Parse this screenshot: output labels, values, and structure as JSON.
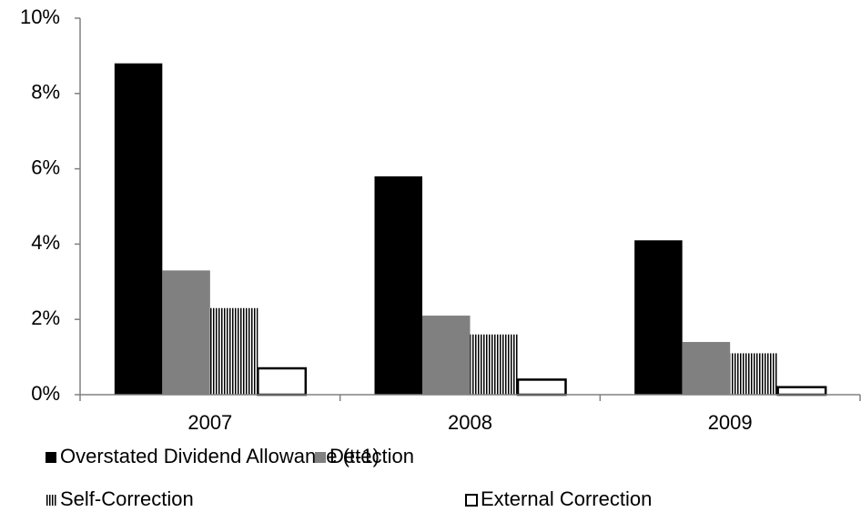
{
  "chart_data": {
    "type": "bar",
    "categories": [
      "2007",
      "2008",
      "2009"
    ],
    "series": [
      {
        "name": "Overstated Dividend Allowance (t-1)",
        "color": "#000000",
        "style": "solid",
        "values": [
          8.8,
          5.8,
          4.1
        ]
      },
      {
        "name": "Detection",
        "color": "#808080",
        "style": "solid",
        "values": [
          3.3,
          2.1,
          1.4
        ]
      },
      {
        "name": "Self-Correction",
        "color": "#000000",
        "style": "vertical-stripes",
        "values": [
          2.3,
          1.6,
          1.1
        ]
      },
      {
        "name": "External Correction",
        "color": "#000000",
        "style": "outline",
        "values": [
          0.7,
          0.4,
          0.2
        ]
      }
    ],
    "ylim": [
      0,
      10
    ],
    "yticks": [
      {
        "value": 0,
        "label": "0%"
      },
      {
        "value": 2,
        "label": "2%"
      },
      {
        "value": 4,
        "label": "4%"
      },
      {
        "value": 6,
        "label": "6%"
      },
      {
        "value": 8,
        "label": "8%"
      },
      {
        "value": 10,
        "label": "10%"
      }
    ],
    "grid": false,
    "legend": "bottom"
  }
}
